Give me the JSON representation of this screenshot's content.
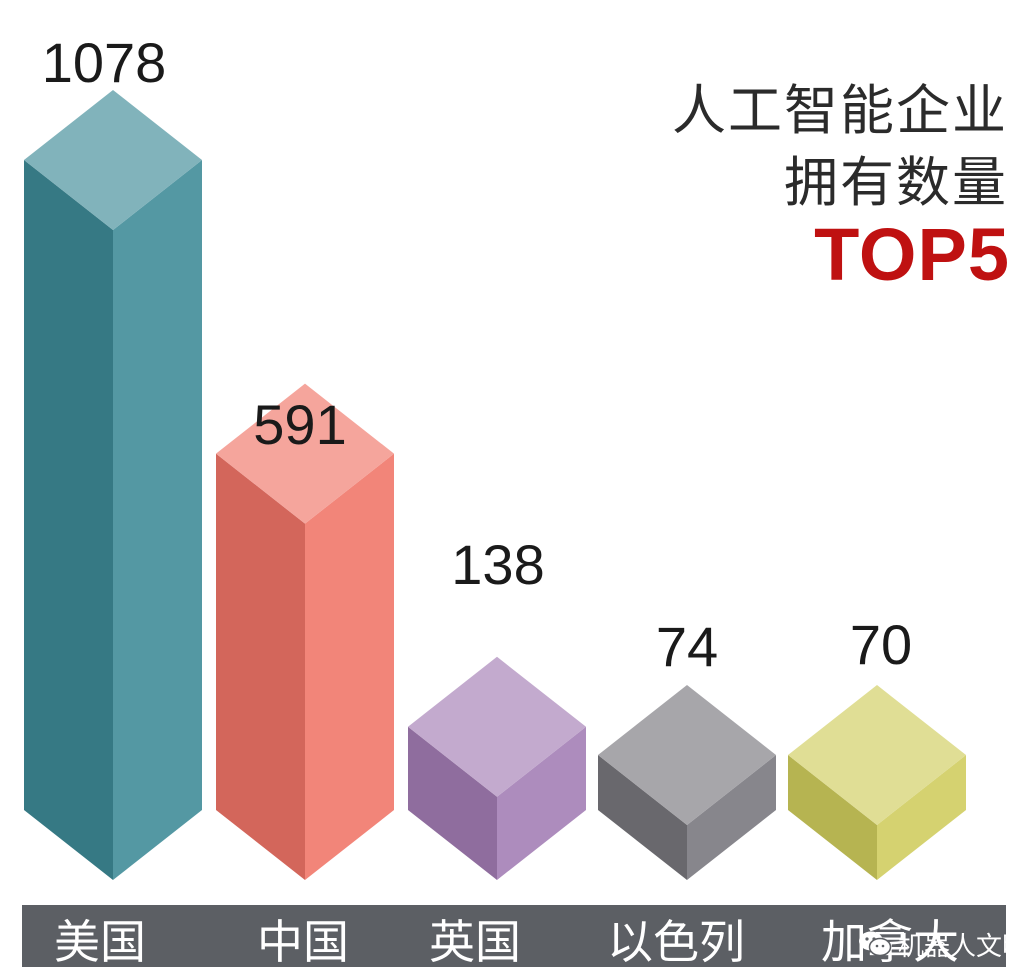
{
  "chart_data": {
    "type": "bar",
    "title_lines": [
      "人工智能企业",
      "拥有数量"
    ],
    "title_highlight": "TOP5",
    "categories": [
      "美国",
      "中国",
      "英国",
      "以色列",
      "加拿大"
    ],
    "values": [
      1078,
      591,
      138,
      74,
      70
    ],
    "value_labels": [
      "1078",
      "591",
      "138",
      "74",
      "70"
    ],
    "colors": [
      "#3d8a96",
      "#f07467",
      "#a27cb4",
      "#77767c",
      "#cfcc5c"
    ],
    "xlabel": "",
    "ylabel": ""
  },
  "colors": {
    "highlight": "#bf1111",
    "axis_bar": "#5c5f64"
  },
  "watermark": {
    "text": "机器人文明",
    "icon": "wechat-icon"
  }
}
